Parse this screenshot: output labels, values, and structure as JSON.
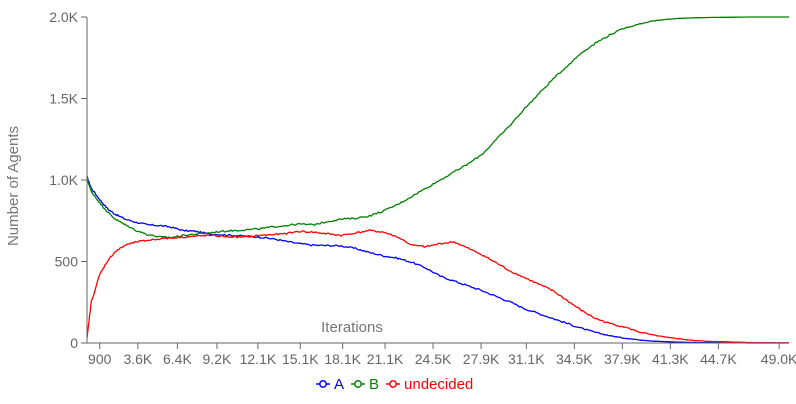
{
  "chart_data": {
    "type": "line",
    "xlabel": "Iterations",
    "ylabel": "Number of Agents",
    "xlim": [
      0,
      49700
    ],
    "ylim": [
      0,
      2000
    ],
    "y_ticks": [
      {
        "value": 0,
        "label": "0"
      },
      {
        "value": 500,
        "label": "500"
      },
      {
        "value": 1000,
        "label": "1.0K"
      },
      {
        "value": 1500,
        "label": "1.5K"
      },
      {
        "value": 2000,
        "label": "2.0K"
      }
    ],
    "x_ticks": [
      {
        "value": 900,
        "label": "900"
      },
      {
        "value": 3600,
        "label": "3.6K"
      },
      {
        "value": 6400,
        "label": "6.4K"
      },
      {
        "value": 9200,
        "label": "9.2K"
      },
      {
        "value": 12100,
        "label": "12.1K"
      },
      {
        "value": 15100,
        "label": "15.1K"
      },
      {
        "value": 18100,
        "label": "18.1K"
      },
      {
        "value": 21100,
        "label": "21.1K"
      },
      {
        "value": 24500,
        "label": "24.5K"
      },
      {
        "value": 27900,
        "label": "27.9K"
      },
      {
        "value": 31100,
        "label": "31.1K"
      },
      {
        "value": 34500,
        "label": "34.5K"
      },
      {
        "value": 37900,
        "label": "37.9K"
      },
      {
        "value": 41300,
        "label": "41.3K"
      },
      {
        "value": 44700,
        "label": "44.7K"
      },
      {
        "value": 49000,
        "label": "49.0K"
      }
    ],
    "grid": false,
    "legend_position": "bottom-center",
    "series": [
      {
        "name": "A",
        "color": "#0000ff",
        "x": [
          0,
          300,
          900,
          1500,
          2000,
          2700,
          3500,
          4300,
          5200,
          6000,
          6800,
          7700,
          8600,
          9500,
          10400,
          11300,
          12200,
          13100,
          14000,
          15000,
          16000,
          17000,
          18000,
          19000,
          20000,
          21000,
          22000,
          23000,
          24000,
          25000,
          26000,
          27000,
          28000,
          29000,
          30000,
          31000,
          32000,
          33000,
          34000,
          35000,
          36000,
          37000,
          38000,
          39000,
          40000,
          41000,
          42000,
          43000,
          44000,
          45000,
          46000,
          47000,
          48000,
          49700
        ],
        "y": [
          1020,
          950,
          880,
          820,
          790,
          760,
          740,
          725,
          720,
          710,
          690,
          685,
          670,
          665,
          660,
          655,
          650,
          640,
          625,
          610,
          600,
          598,
          596,
          580,
          555,
          535,
          520,
          495,
          460,
          410,
          380,
          350,
          320,
          285,
          250,
          210,
          180,
          150,
          120,
          90,
          65,
          45,
          30,
          20,
          12,
          8,
          5,
          3,
          2,
          1,
          1,
          0,
          0,
          0
        ]
      },
      {
        "name": "B",
        "color": "#008000",
        "x": [
          0,
          300,
          900,
          1500,
          2000,
          2700,
          3500,
          4300,
          5200,
          6000,
          6800,
          7700,
          8600,
          9500,
          10400,
          11300,
          12200,
          13100,
          14000,
          15000,
          16000,
          17000,
          18000,
          19000,
          20000,
          21000,
          22000,
          23000,
          24000,
          25000,
          26000,
          27000,
          28000,
          29000,
          30000,
          31000,
          32000,
          33000,
          34000,
          35000,
          36000,
          37000,
          38000,
          39000,
          40000,
          41000,
          42000,
          43000,
          44000,
          45000,
          46000,
          47000,
          48000,
          49700
        ],
        "y": [
          1010,
          930,
          860,
          800,
          760,
          725,
          690,
          665,
          650,
          648,
          660,
          668,
          675,
          685,
          690,
          695,
          700,
          712,
          720,
          730,
          725,
          745,
          760,
          765,
          780,
          810,
          850,
          900,
          950,
          1000,
          1050,
          1100,
          1160,
          1250,
          1340,
          1440,
          1530,
          1620,
          1700,
          1780,
          1840,
          1890,
          1930,
          1955,
          1975,
          1985,
          1992,
          1995,
          1997,
          1998,
          1999,
          2000,
          2000,
          2000
        ]
      },
      {
        "name": "undecided",
        "color": "#ff0000",
        "x": [
          0,
          300,
          900,
          1500,
          2000,
          2700,
          3500,
          4300,
          5200,
          6000,
          6800,
          7700,
          8600,
          9500,
          10400,
          11300,
          12200,
          13100,
          14000,
          15000,
          16000,
          17000,
          18000,
          19000,
          20000,
          21000,
          22000,
          23000,
          24000,
          25000,
          26000,
          27000,
          28000,
          29000,
          30000,
          31000,
          32000,
          33000,
          34000,
          35000,
          36000,
          37000,
          38000,
          39000,
          40000,
          41000,
          42000,
          43000,
          44000,
          45000,
          46000,
          47000,
          48000,
          49700
        ],
        "y": [
          30,
          250,
          420,
          510,
          560,
          600,
          620,
          630,
          640,
          645,
          650,
          655,
          660,
          655,
          650,
          650,
          660,
          665,
          670,
          685,
          680,
          670,
          660,
          675,
          690,
          680,
          650,
          600,
          590,
          610,
          620,
          580,
          540,
          490,
          440,
          400,
          360,
          320,
          260,
          200,
          150,
          120,
          100,
          70,
          50,
          35,
          25,
          15,
          10,
          8,
          5,
          3,
          2,
          1
        ]
      }
    ]
  }
}
